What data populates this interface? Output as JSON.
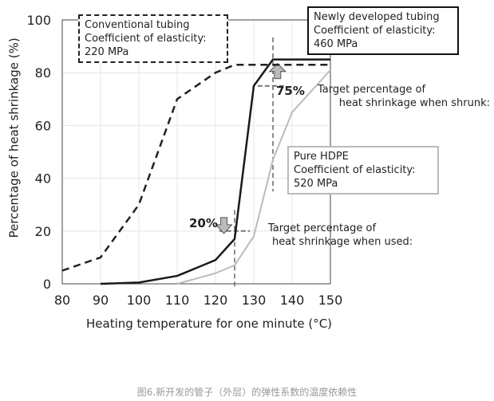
{
  "chart_data": {
    "type": "line",
    "xlabel": "Heating temperature for one minute (°C)",
    "ylabel": "Percentage of heat shrinkage (%)",
    "xlim": [
      80,
      150
    ],
    "ylim": [
      0,
      100
    ],
    "xticks": [
      80,
      90,
      100,
      110,
      120,
      130,
      140,
      150
    ],
    "yticks": [
      0,
      20,
      40,
      60,
      80,
      100
    ],
    "grid": true,
    "series": [
      {
        "style": "dashed",
        "color": "#222222",
        "points": [
          [
            80,
            5
          ],
          [
            90,
            10
          ],
          [
            100,
            30
          ],
          [
            110,
            70
          ],
          [
            120,
            80
          ],
          [
            125,
            83
          ],
          [
            150,
            83
          ]
        ]
      },
      {
        "style": "solid",
        "color": "#1a1a1a",
        "points": [
          [
            90,
            0
          ],
          [
            100,
            0.5
          ],
          [
            110,
            3
          ],
          [
            120,
            9
          ],
          [
            125,
            17
          ],
          [
            130,
            75
          ],
          [
            135,
            85
          ],
          [
            150,
            85
          ]
        ]
      },
      {
        "style": "solid",
        "color": "#bbbbbb",
        "points": [
          [
            110,
            0
          ],
          [
            120,
            4
          ],
          [
            125,
            7
          ],
          [
            130,
            18
          ],
          [
            135,
            47
          ],
          [
            140,
            65
          ],
          [
            150,
            81
          ]
        ]
      }
    ],
    "annotations": {
      "conventional": {
        "lines": [
          "Conventional tubing",
          "Coefficient of elasticity:",
          "220 MPa"
        ]
      },
      "newly": {
        "lines": [
          "Newly developed tubing",
          "Coefficient of elasticity:",
          "460 MPa"
        ]
      },
      "hdpe": {
        "lines": [
          "Pure HDPE",
          "Coefficient of elasticity:",
          "520 MPa"
        ]
      },
      "target_shrunk": {
        "lines": [
          "Target percentage of",
          "heat shrinkage when shrunk:"
        ],
        "value_label": "75%",
        "x": 135,
        "y": 75
      },
      "target_used": {
        "lines": [
          "Target percentage of",
          "heat shrinkage when used:"
        ],
        "value_label": "20%",
        "x": 125,
        "y": 20
      }
    }
  },
  "caption": "图6.新开发的管子（外层）的弹性系数的温度依赖性"
}
